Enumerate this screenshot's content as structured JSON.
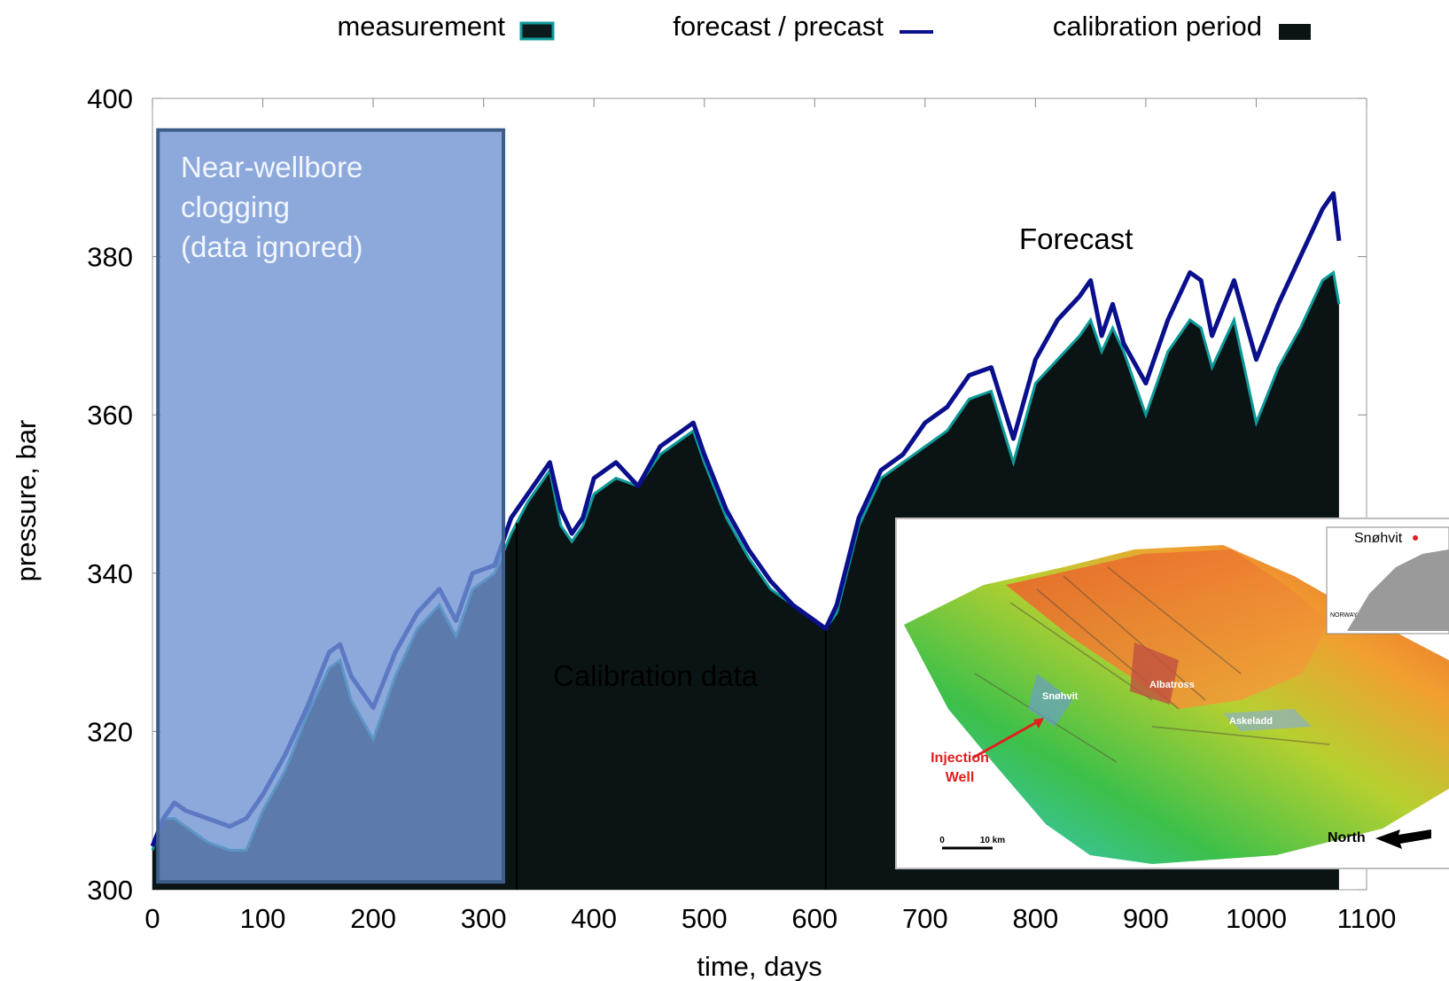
{
  "chart_data": {
    "type": "area",
    "xlabel": "time, days",
    "ylabel": "pressure, bar",
    "xlim": [
      0,
      1100
    ],
    "ylim": [
      300,
      400
    ],
    "x_ticks": [
      0,
      100,
      200,
      300,
      400,
      500,
      600,
      700,
      800,
      900,
      1000,
      1100
    ],
    "y_ticks": [
      300,
      320,
      340,
      360,
      380,
      400
    ],
    "grid": false,
    "legend_position": "top",
    "legend": [
      {
        "label": "measurement",
        "color": "#0f9a9a"
      },
      {
        "label": "forecast / precast",
        "color": "#0a0f8c"
      },
      {
        "label": "calibration period",
        "color": "#0b1414"
      }
    ],
    "series": [
      {
        "name": "measurement",
        "x": [
          0,
          10,
          20,
          30,
          50,
          70,
          85,
          100,
          120,
          140,
          160,
          170,
          180,
          200,
          220,
          240,
          260,
          275,
          290,
          310,
          325,
          340,
          360,
          370,
          380,
          390,
          400,
          420,
          440,
          460,
          480,
          490,
          500,
          520,
          540,
          560,
          580,
          600,
          610,
          620,
          640,
          660,
          680,
          700,
          720,
          740,
          760,
          780,
          800,
          820,
          840,
          850,
          860,
          870,
          880,
          900,
          920,
          940,
          950,
          960,
          980,
          1000,
          1020,
          1040,
          1060,
          1070,
          1075
        ],
        "y": [
          305,
          309,
          309,
          308,
          306,
          305,
          305,
          310,
          315,
          322,
          328,
          329,
          324,
          319,
          327,
          333,
          336,
          332,
          338,
          340,
          345,
          349,
          353,
          346,
          344,
          346,
          350,
          352,
          351,
          355,
          357,
          358,
          354,
          347,
          342,
          338,
          336,
          334,
          333,
          335,
          346,
          352,
          354,
          356,
          358,
          362,
          363,
          354,
          364,
          367,
          370,
          372,
          368,
          371,
          368,
          360,
          368,
          372,
          371,
          366,
          372,
          359,
          366,
          371,
          377,
          378,
          374
        ]
      },
      {
        "name": "forecast / precast",
        "x": [
          0,
          10,
          20,
          30,
          50,
          70,
          85,
          100,
          120,
          140,
          160,
          170,
          180,
          200,
          220,
          240,
          260,
          275,
          290,
          310,
          325,
          340,
          360,
          370,
          380,
          390,
          400,
          420,
          440,
          460,
          480,
          490,
          500,
          520,
          540,
          560,
          580,
          600,
          610,
          620,
          640,
          660,
          680,
          700,
          720,
          740,
          760,
          780,
          800,
          820,
          840,
          850,
          860,
          870,
          880,
          900,
          920,
          940,
          950,
          960,
          980,
          1000,
          1020,
          1040,
          1060,
          1070,
          1075
        ],
        "y": [
          305.5,
          309,
          311,
          310,
          309,
          308,
          309,
          312,
          317,
          323,
          330,
          331,
          327,
          323,
          330,
          335,
          338,
          334,
          340,
          341,
          347,
          350,
          354,
          348,
          345,
          347,
          352,
          354,
          351,
          356,
          358,
          359,
          355,
          348,
          343,
          339,
          336,
          334,
          333,
          336,
          347,
          353,
          355,
          359,
          361,
          365,
          366,
          357,
          367,
          372,
          375,
          377,
          370,
          374,
          369,
          364,
          372,
          378,
          377,
          370,
          377,
          367,
          374,
          380,
          386,
          388,
          382
        ]
      }
    ],
    "calibration_period": {
      "x_start": 330,
      "x_end": 610
    },
    "annotations": [
      {
        "text": "Near-wellbore\nclogging\n(data ignored)",
        "x_range": [
          5,
          318
        ],
        "y_range": [
          301,
          396
        ]
      },
      {
        "text": "Calibration data",
        "x": 355,
        "y": 327
      },
      {
        "text": "Forecast",
        "x": 780,
        "y": 382
      }
    ]
  },
  "labels": {
    "annotation_clog_1": "Near-wellbore",
    "annotation_clog_2": "clogging",
    "annotation_clog_3": "(data ignored)",
    "annotation_calib": "Calibration data",
    "annotation_forecast": "Forecast"
  },
  "inset_map": {
    "locations": [
      "Snøhvit",
      "Albatross",
      "Askeladd"
    ],
    "injection_label_1": "Injection",
    "injection_label_2": "Well",
    "north_label": "North",
    "scale_0": "0",
    "scale_10": "10 km",
    "overview_label": "Snøhvit",
    "overview_country": "NORWAY"
  }
}
